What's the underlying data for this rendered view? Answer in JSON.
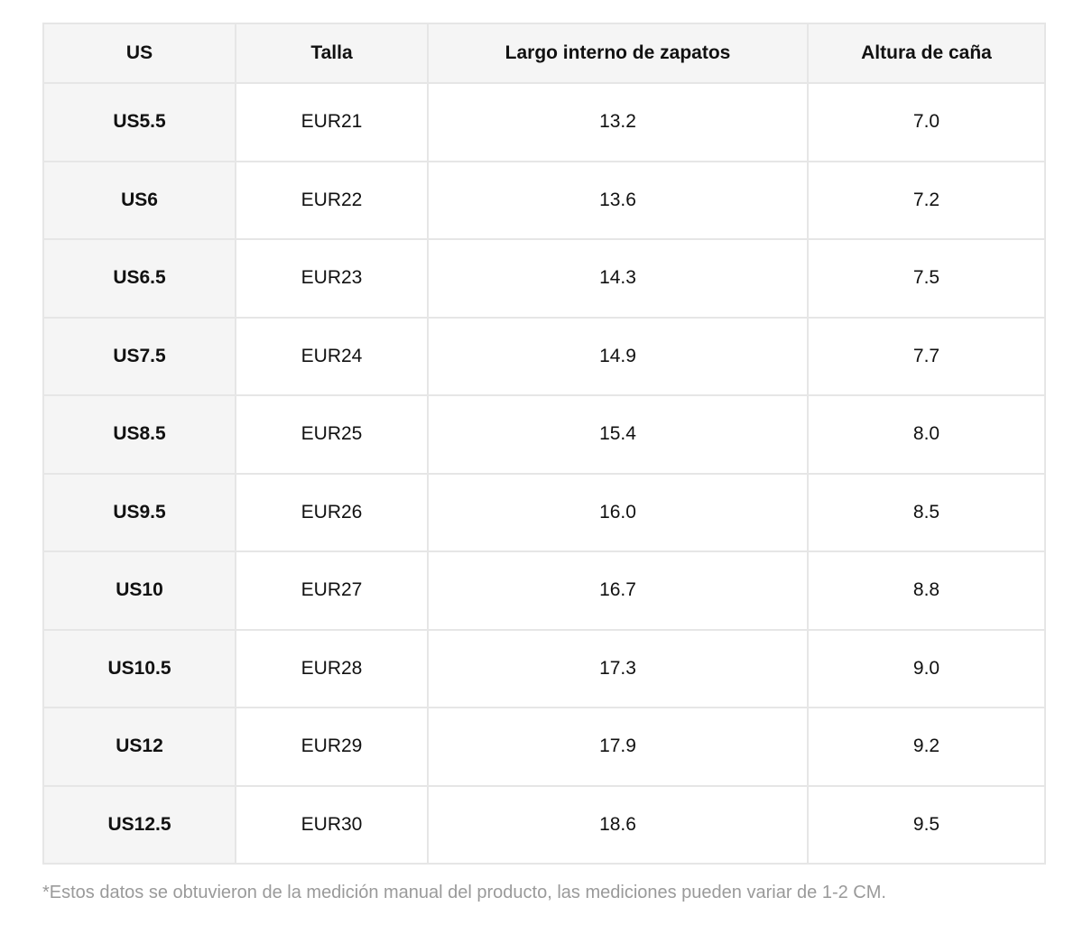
{
  "table": {
    "headers": [
      "US",
      "Talla",
      "Largo interno de zapatos",
      "Altura de caña"
    ],
    "rows": [
      [
        "US5.5",
        "EUR21",
        "13.2",
        "7.0"
      ],
      [
        "US6",
        "EUR22",
        "13.6",
        "7.2"
      ],
      [
        "US6.5",
        "EUR23",
        "14.3",
        "7.5"
      ],
      [
        "US7.5",
        "EUR24",
        "14.9",
        "7.7"
      ],
      [
        "US8.5",
        "EUR25",
        "15.4",
        "8.0"
      ],
      [
        "US9.5",
        "EUR26",
        "16.0",
        "8.5"
      ],
      [
        "US10",
        "EUR27",
        "16.7",
        "8.8"
      ],
      [
        "US10.5",
        "EUR28",
        "17.3",
        "9.0"
      ],
      [
        "US12",
        "EUR29",
        "17.9",
        "9.2"
      ],
      [
        "US12.5",
        "EUR30",
        "18.6",
        "9.5"
      ]
    ]
  },
  "footnote": "*Estos datos se obtuvieron de la medición manual del producto, las mediciones pueden variar de 1-2 CM.",
  "colors": {
    "header_bg": "#f5f5f5",
    "border": "#e6e6e6",
    "footnote_text": "#9a9a9a"
  }
}
